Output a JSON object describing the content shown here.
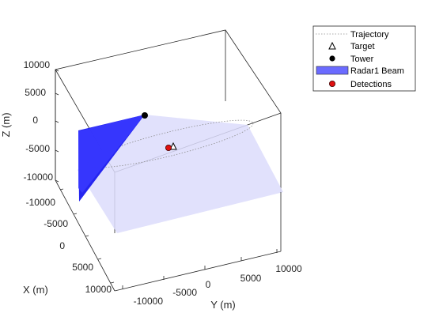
{
  "chart_data": {
    "type": "3d-scatter",
    "zlabel": "Z (m)",
    "xlabel": "X (m)",
    "ylabel": "Y (m)",
    "z_ticks": [
      "10000",
      "5000",
      "0",
      "-5000",
      "-10000"
    ],
    "x_ticks": [
      "-10000",
      "-5000",
      "0",
      "5000",
      "10000"
    ],
    "y_ticks": [
      "-10000",
      "-5000",
      "0",
      "5000",
      "10000"
    ],
    "xlim": [
      -10000,
      10000
    ],
    "ylim": [
      -10000,
      10000
    ],
    "zlim": [
      -10000,
      10000
    ],
    "grid": false,
    "legend_position": "top-right outside",
    "legend": [
      {
        "label": "Trajectory",
        "marker": "dotted-line",
        "color": "#8c8c8c"
      },
      {
        "label": "Target",
        "marker": "open-triangle",
        "color": "#000000"
      },
      {
        "label": "Tower",
        "marker": "filled-circle",
        "color": "#000000"
      },
      {
        "label": "Radar1 Beam",
        "marker": "patch",
        "color": "#6b6bff"
      },
      {
        "label": "Detections",
        "marker": "filled-circle",
        "color": "#e01010"
      }
    ]
  }
}
